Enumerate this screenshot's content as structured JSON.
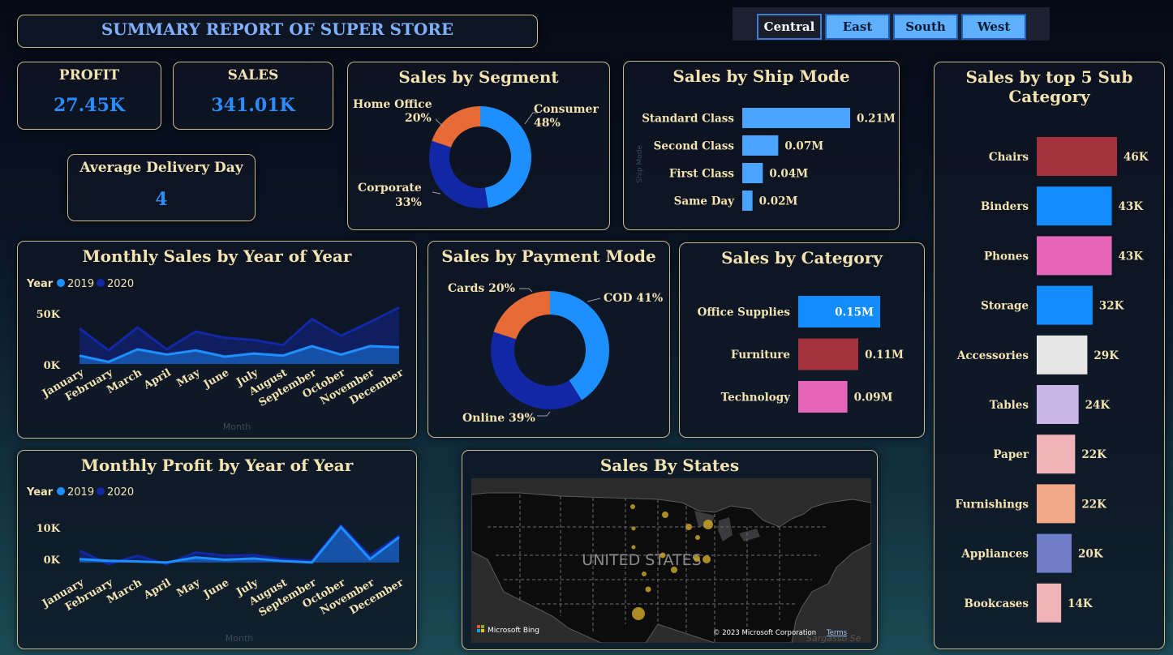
{
  "header": {
    "title": "SUMMARY REPORT OF SUPER STORE"
  },
  "regions": {
    "items": [
      "Central",
      "East",
      "South",
      "West"
    ],
    "active": "Central"
  },
  "kpis": {
    "profit": {
      "label": "PROFIT",
      "value": "27.45K"
    },
    "sales": {
      "label": "SALES",
      "value": "341.01K"
    },
    "delivery": {
      "label": "Average Delivery Day",
      "value": "4"
    }
  },
  "segment": {
    "title": "Sales by Segment",
    "slices": [
      {
        "name": "Consumer",
        "pct": "48%",
        "value": 48,
        "color": "#1e8fff"
      },
      {
        "name": "Corporate",
        "pct": "33%",
        "value": 33,
        "color": "#1227a3"
      },
      {
        "name": "Home Office",
        "pct": "20%",
        "value": 20,
        "color": "#e56a35"
      }
    ]
  },
  "ship_mode": {
    "title": "Sales by Ship Mode",
    "axis_label": "Ship Mode",
    "bars": [
      {
        "name": "Standard Class",
        "label": "0.21M",
        "value": 0.21
      },
      {
        "name": "Second Class",
        "label": "0.07M",
        "value": 0.07
      },
      {
        "name": "First Class",
        "label": "0.04M",
        "value": 0.04
      },
      {
        "name": "Same Day",
        "label": "0.02M",
        "value": 0.02
      }
    ],
    "color": "#4aa3ff"
  },
  "subcategory": {
    "title_line1": "Sales by top 5 Sub",
    "title_line2": "Category",
    "bars": [
      {
        "name": "Chairs",
        "label": "46K",
        "value": 46,
        "color": "#a3323c"
      },
      {
        "name": "Binders",
        "label": "43K",
        "value": 43,
        "color": "#138cff"
      },
      {
        "name": "Phones",
        "label": "43K",
        "value": 43,
        "color": "#e565b8"
      },
      {
        "name": "Storage",
        "label": "32K",
        "value": 32,
        "color": "#138cff"
      },
      {
        "name": "Accessories",
        "label": "29K",
        "value": 29,
        "color": "#e6e6e6"
      },
      {
        "name": "Tables",
        "label": "24K",
        "value": 24,
        "color": "#c8b7e6"
      },
      {
        "name": "Paper",
        "label": "22K",
        "value": 22,
        "color": "#f0b4b8"
      },
      {
        "name": "Furnishings",
        "label": "22K",
        "value": 22,
        "color": "#f0a888"
      },
      {
        "name": "Appliances",
        "label": "20K",
        "value": 20,
        "color": "#6f7cc6"
      },
      {
        "name": "Bookcases",
        "label": "14K",
        "value": 14,
        "color": "#f0b4b8"
      }
    ]
  },
  "payment": {
    "title": "Sales by Payment Mode",
    "slices": [
      {
        "name": "COD",
        "label": "COD 41%",
        "value": 41,
        "color": "#1e8fff"
      },
      {
        "name": "Online",
        "label": "Online 39%",
        "value": 39,
        "color": "#1227a3"
      },
      {
        "name": "Cards",
        "label": "Cards 20%",
        "value": 20,
        "color": "#e56a35"
      }
    ]
  },
  "category": {
    "title": "Sales by Category",
    "bars": [
      {
        "name": "Office Supplies",
        "label": "0.15M",
        "value": 0.15,
        "color": "#138cff"
      },
      {
        "name": "Furniture",
        "label": "0.11M",
        "value": 0.11,
        "color": "#a3323c"
      },
      {
        "name": "Technology",
        "label": "0.09M",
        "value": 0.09,
        "color": "#e565b8"
      }
    ]
  },
  "monthly_sales": {
    "title": "Monthly Sales by Year of Year",
    "legend_title": "Year",
    "series_names": [
      "2019",
      "2020"
    ],
    "y_ticks": [
      "50K",
      "0K"
    ],
    "x_label": "Month",
    "months": [
      "January",
      "February",
      "March",
      "April",
      "May",
      "June",
      "July",
      "August",
      "September",
      "October",
      "November",
      "December"
    ]
  },
  "monthly_profit": {
    "title": "Monthly Profit by Year of Year",
    "legend_title": "Year",
    "series_names": [
      "2019",
      "2020"
    ],
    "y_ticks": [
      "10K",
      "0K"
    ],
    "x_label": "Month",
    "months": [
      "January",
      "February",
      "March",
      "April",
      "May",
      "June",
      "July",
      "August",
      "September",
      "October",
      "November",
      "December"
    ]
  },
  "map": {
    "title": "Sales By States",
    "country_label": "UNITED STATES",
    "brand": "Microsoft Bing",
    "copyright": "© 2023 Microsoft Corporation",
    "terms": "Terms",
    "sea_label": "Sargasso Se"
  },
  "chart_data": [
    {
      "type": "area",
      "title": "Monthly Sales by Year of Year",
      "xlabel": "Month",
      "ylabel": "",
      "categories": [
        "January",
        "February",
        "March",
        "April",
        "May",
        "June",
        "July",
        "August",
        "September",
        "October",
        "November",
        "December"
      ],
      "ylim": [
        0,
        55000
      ],
      "series": [
        {
          "name": "2019",
          "color": "#1e8fff",
          "values": [
            8000,
            2000,
            14000,
            9000,
            13000,
            7000,
            10000,
            8000,
            17000,
            9000,
            17000,
            16000
          ]
        },
        {
          "name": "2020",
          "color": "#1227a3",
          "values": [
            34000,
            13000,
            35000,
            14000,
            31000,
            25000,
            23000,
            18000,
            43000,
            27000,
            40000,
            54000
          ]
        }
      ]
    },
    {
      "type": "area",
      "title": "Monthly Profit by Year of Year",
      "xlabel": "Month",
      "ylabel": "",
      "categories": [
        "January",
        "February",
        "March",
        "April",
        "May",
        "June",
        "July",
        "August",
        "September",
        "October",
        "November",
        "December"
      ],
      "ylim": [
        -1000,
        12000
      ],
      "series": [
        {
          "name": "2019",
          "color": "#1e8fff",
          "values": [
            1000,
            500,
            300,
            0,
            1500,
            800,
            1200,
            400,
            0,
            10500,
            1000,
            7500
          ]
        },
        {
          "name": "2020",
          "color": "#1227a3",
          "values": [
            3500,
            -500,
            2000,
            -500,
            3000,
            2000,
            2200,
            1000,
            500,
            11000,
            2000,
            8000
          ]
        }
      ]
    }
  ]
}
